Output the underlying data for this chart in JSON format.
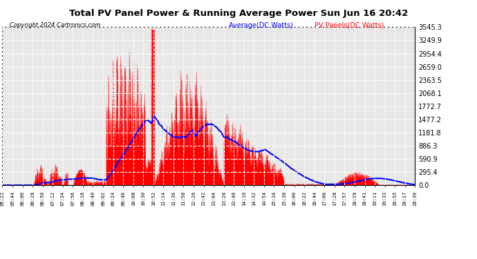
{
  "title": "Total PV Panel Power & Running Average Power Sun Jun 16 20:42",
  "copyright": "Copyright 2024 Cartronics.com",
  "legend_avg": "Average(DC Watts)",
  "legend_pv": "PV Panels(DC Watts)",
  "yticks": [
    0.0,
    295.4,
    590.9,
    886.3,
    1181.8,
    1477.2,
    1772.7,
    2068.1,
    2363.5,
    2659.0,
    2954.4,
    3249.9,
    3545.3
  ],
  "ymax": 3545.3,
  "bg_color": "#ffffff",
  "plot_bg_color": "#e8e8e8",
  "grid_color": "#ffffff",
  "pv_color": "#ff0000",
  "avg_color": "#0000ff",
  "title_color": "#000000",
  "copyright_color": "#000000",
  "legend_avg_color": "#0000ff",
  "legend_pv_color": "#ff0000",
  "xtick_labels": [
    "05:22",
    "05:44",
    "06:06",
    "06:28",
    "06:50",
    "07:12",
    "07:34",
    "07:56",
    "08:18",
    "08:40",
    "09:02",
    "09:24",
    "09:46",
    "10:08",
    "10:30",
    "10:52",
    "11:14",
    "11:36",
    "11:58",
    "12:20",
    "12:42",
    "13:04",
    "13:26",
    "13:46",
    "14:10",
    "14:32",
    "14:54",
    "15:16",
    "15:38",
    "16:00",
    "16:22",
    "16:44",
    "17:06",
    "17:28",
    "17:57",
    "18:19",
    "18:41",
    "19:11",
    "19:33",
    "19:55",
    "20:17",
    "20:39"
  ]
}
